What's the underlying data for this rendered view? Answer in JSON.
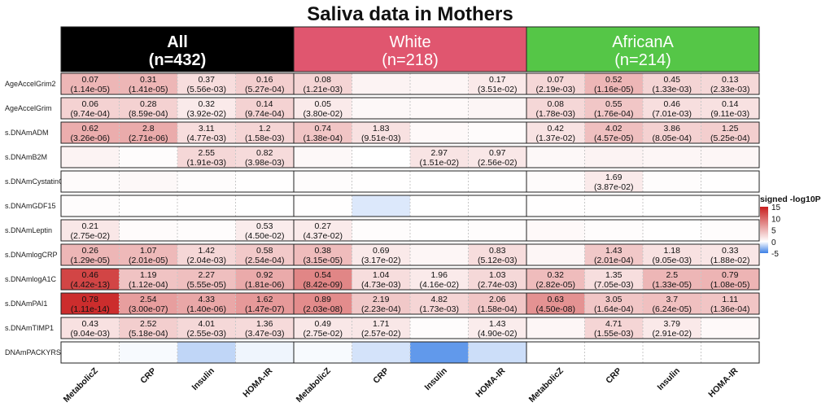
{
  "chart_data": {
    "type": "heatmap",
    "title": "Saliva data in Mothers",
    "groups": [
      {
        "name": "All",
        "n": "(n=432)",
        "color": "#000000",
        "text_color": "#ffffff"
      },
      {
        "name": "White",
        "n": "(n=218)",
        "color": "#e0566f",
        "text_color": "#ffffff"
      },
      {
        "name": "AfricanA",
        "n": "(n=214)",
        "color": "#55c647",
        "text_color": "#ffffff"
      }
    ],
    "columns": [
      "MetabolicZ",
      "CRP",
      "Insulin",
      "HOMA-IR"
    ],
    "rows": [
      "AgeAccelGrim2",
      "AgeAccelGrim",
      "s.DNAmADM",
      "s.DNAmB2M",
      "s.DNAmCystatinC",
      "s.DNAmGDF15",
      "s.DNAmLeptin",
      "s.DNAmlogCRP",
      "s.DNAmlogA1C",
      "s.DNAmPAI1",
      "s.DNAmTIMP1",
      "DNAmPACKYRS"
    ],
    "legend": {
      "title": "signed -log10P",
      "ticks": [
        "15",
        "10",
        "5",
        "0",
        "-5"
      ],
      "tick_values": [
        15,
        10,
        5,
        0,
        -5
      ],
      "range": [
        -5,
        15
      ],
      "high_color": "#c81e1e",
      "mid_color": "#ffffff",
      "low_color": "#3a7fe6"
    },
    "cells": [
      [
        [
          "0.07",
          "(1.14e-05)",
          4.9
        ],
        [
          "0.31",
          "(1.41e-05)",
          4.9
        ],
        [
          "0.37",
          "(5.56e-03)",
          2.3
        ],
        [
          "0.16",
          "(5.27e-04)",
          3.3
        ],
        [
          "0.08",
          "(1.21e-03)",
          2.9
        ],
        [
          null,
          null,
          0.8
        ],
        [
          null,
          null,
          0.6
        ],
        [
          "0.17",
          "(3.51e-02)",
          1.5
        ],
        [
          "0.07",
          "(2.19e-03)",
          2.7
        ],
        [
          "0.52",
          "(1.16e-05)",
          4.9
        ],
        [
          "0.45",
          "(1.33e-03)",
          2.9
        ],
        [
          "0.13",
          "(2.33e-03)",
          2.6
        ]
      ],
      [
        [
          "0.06",
          "(9.74e-04)",
          3.0
        ],
        [
          "0.28",
          "(8.59e-04)",
          3.1
        ],
        [
          "0.32",
          "(3.92e-02)",
          1.4
        ],
        [
          "0.14",
          "(9.74e-04)",
          3.0
        ],
        [
          "0.05",
          "(3.80e-02)",
          1.4
        ],
        [
          null,
          null,
          0.5
        ],
        [
          null,
          null,
          0.4
        ],
        [
          null,
          null,
          0.7
        ],
        [
          "0.08",
          "(1.78e-03)",
          2.7
        ],
        [
          "0.55",
          "(1.76e-04)",
          3.8
        ],
        [
          "0.46",
          "(7.01e-03)",
          2.2
        ],
        [
          "0.14",
          "(9.11e-03)",
          2.0
        ]
      ],
      [
        [
          "0.62",
          "(3.26e-06)",
          5.5
        ],
        [
          "2.8",
          "(2.71e-06)",
          5.6
        ],
        [
          "3.11",
          "(4.77e-03)",
          2.3
        ],
        [
          "1.2",
          "(1.58e-03)",
          2.8
        ],
        [
          "0.74",
          "(1.38e-04)",
          3.9
        ],
        [
          "1.83",
          "(9.51e-03)",
          2.0
        ],
        [
          null,
          null,
          0.4
        ],
        [
          null,
          null,
          0.3
        ],
        [
          "0.42",
          "(1.37e-02)",
          1.9
        ],
        [
          "4.02",
          "(4.57e-05)",
          4.3
        ],
        [
          "3.86",
          "(8.05e-04)",
          3.1
        ],
        [
          "1.25",
          "(5.25e-04)",
          3.3
        ]
      ],
      [
        [
          null,
          null,
          0.8
        ],
        [
          null,
          null,
          0.2
        ],
        [
          "2.55",
          "(1.91e-03)",
          2.7
        ],
        [
          "0.82",
          "(3.98e-03)",
          2.4
        ],
        [
          null,
          null,
          0.5
        ],
        [
          null,
          null,
          0.0
        ],
        [
          "2.97",
          "(1.51e-02)",
          1.8
        ],
        [
          "0.97",
          "(2.56e-02)",
          1.6
        ],
        [
          null,
          null,
          0.5
        ],
        [
          null,
          null,
          0.8
        ],
        [
          null,
          null,
          0.6
        ],
        [
          null,
          null,
          0.6
        ]
      ],
      [
        [
          null,
          null,
          0.3
        ],
        [
          null,
          null,
          0.5
        ],
        [
          null,
          null,
          0.2
        ],
        [
          null,
          null,
          0.1
        ],
        [
          null,
          null,
          0.2
        ],
        [
          null,
          null,
          0.1
        ],
        [
          null,
          null,
          0.0
        ],
        [
          null,
          null,
          0.0
        ],
        [
          null,
          null,
          0.3
        ],
        [
          "1.69",
          "(3.87e-02)",
          1.4
        ],
        [
          null,
          null,
          0.2
        ],
        [
          null,
          null,
          0.1
        ]
      ],
      [
        [
          null,
          null,
          0.2
        ],
        [
          null,
          null,
          0.1
        ],
        [
          null,
          null,
          0.1
        ],
        [
          null,
          null,
          0.0
        ],
        [
          null,
          null,
          0.1
        ],
        [
          null,
          null,
          -0.9
        ],
        [
          null,
          null,
          0.0
        ],
        [
          null,
          null,
          0.0
        ],
        [
          null,
          null,
          0.1
        ],
        [
          null,
          null,
          0.1
        ],
        [
          null,
          null,
          0.0
        ],
        [
          null,
          null,
          0.0
        ]
      ],
      [
        [
          "0.21",
          "(2.75e-02)",
          1.6
        ],
        [
          null,
          null,
          0.3
        ],
        [
          null,
          null,
          0.2
        ],
        [
          "0.53",
          "(4.50e-02)",
          1.3
        ],
        [
          "0.27",
          "(4.37e-02)",
          1.4
        ],
        [
          null,
          null,
          0.2
        ],
        [
          null,
          null,
          0.1
        ],
        [
          null,
          null,
          0.2
        ],
        [
          null,
          null,
          0.4
        ],
        [
          null,
          null,
          0.2
        ],
        [
          null,
          null,
          0.1
        ],
        [
          null,
          null,
          0.2
        ]
      ],
      [
        [
          "0.26",
          "(1.29e-05)",
          4.9
        ],
        [
          "1.07",
          "(2.01e-05)",
          4.7
        ],
        [
          "1.42",
          "(2.04e-03)",
          2.7
        ],
        [
          "0.58",
          "(2.54e-04)",
          3.6
        ],
        [
          "0.38",
          "(3.15e-05)",
          4.5
        ],
        [
          "0.69",
          "(3.17e-02)",
          1.5
        ],
        [
          null,
          null,
          0.6
        ],
        [
          "0.83",
          "(5.12e-03)",
          2.3
        ],
        [
          null,
          null,
          0.6
        ],
        [
          "1.43",
          "(2.01e-04)",
          3.7
        ],
        [
          "1.18",
          "(9.05e-03)",
          2.0
        ],
        [
          "0.33",
          "(1.88e-02)",
          1.7
        ]
      ],
      [
        [
          "0.46",
          "(4.42e-13)",
          12.4
        ],
        [
          "1.19",
          "(1.12e-04)",
          4.0
        ],
        [
          "2.27",
          "(5.55e-05)",
          4.3
        ],
        [
          "0.92",
          "(1.81e-06)",
          5.7
        ],
        [
          "0.54",
          "(8.42e-09)",
          8.1
        ],
        [
          "1.04",
          "(4.73e-03)",
          2.3
        ],
        [
          "1.96",
          "(4.16e-02)",
          1.4
        ],
        [
          "1.03",
          "(2.74e-03)",
          2.6
        ],
        [
          "0.32",
          "(2.82e-05)",
          4.5
        ],
        [
          "1.35",
          "(7.05e-03)",
          2.2
        ],
        [
          "2.5",
          "(1.33e-05)",
          4.9
        ],
        [
          "0.79",
          "(1.08e-05)",
          5.0
        ]
      ],
      [
        [
          "0.78",
          "(1.11e-14)",
          14.0
        ],
        [
          "2.54",
          "(3.00e-07)",
          6.5
        ],
        [
          "4.33",
          "(1.40e-06)",
          5.9
        ],
        [
          "1.62",
          "(1.47e-07)",
          6.8
        ],
        [
          "0.89",
          "(2.03e-08)",
          7.7
        ],
        [
          "2.19",
          "(2.23e-04)",
          3.7
        ],
        [
          "4.82",
          "(1.73e-03)",
          2.8
        ],
        [
          "2.06",
          "(1.58e-04)",
          3.8
        ],
        [
          "0.63",
          "(4.50e-08)",
          7.3
        ],
        [
          "3.05",
          "(1.64e-04)",
          3.8
        ],
        [
          "3.7",
          "(6.24e-05)",
          4.2
        ],
        [
          "1.11",
          "(1.36e-04)",
          3.9
        ]
      ],
      [
        [
          "0.43",
          "(9.04e-03)",
          2.0
        ],
        [
          "2.52",
          "(5.18e-04)",
          3.3
        ],
        [
          "4.01",
          "(2.55e-03)",
          2.6
        ],
        [
          "1.36",
          "(3.47e-03)",
          2.5
        ],
        [
          "0.49",
          "(2.75e-02)",
          1.6
        ],
        [
          "1.71",
          "(2.57e-02)",
          1.6
        ],
        [
          null,
          null,
          0.2
        ],
        [
          "1.43",
          "(4.90e-02)",
          1.3
        ],
        [
          null,
          null,
          0.6
        ],
        [
          "4.71",
          "(1.55e-03)",
          2.8
        ],
        [
          "3.79",
          "(2.91e-02)",
          1.5
        ],
        [
          null,
          null,
          0.4
        ]
      ],
      [
        [
          null,
          null,
          0.0
        ],
        [
          null,
          null,
          -0.2
        ],
        [
          null,
          null,
          -1.6
        ],
        [
          null,
          null,
          -0.4
        ],
        [
          null,
          null,
          -0.2
        ],
        [
          null,
          null,
          -1.1
        ],
        [
          null,
          null,
          -4.0
        ],
        [
          null,
          null,
          -1.3
        ],
        [
          null,
          null,
          0.0
        ],
        [
          null,
          null,
          0.0
        ],
        [
          null,
          null,
          0.0
        ],
        [
          null,
          null,
          0.0
        ]
      ]
    ]
  }
}
